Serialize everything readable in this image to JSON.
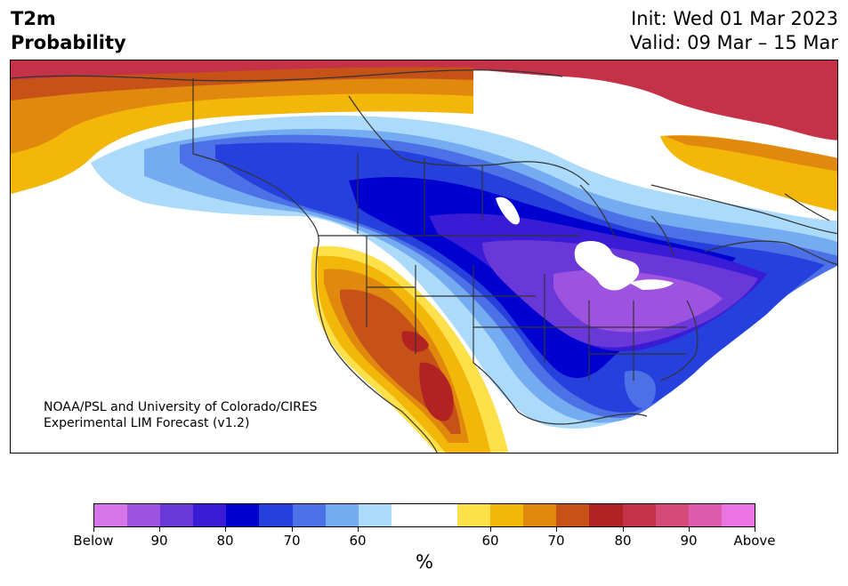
{
  "header": {
    "title_line1": "T2m",
    "title_line2": "Probability",
    "init": "Init: Wed 01 Mar 2023",
    "valid": "Valid: 09 Mar – 15 Mar"
  },
  "credit": {
    "line1": "NOAA/PSL and University of Colorado/CIRES",
    "line2": "Experimental LIM Forecast (v1.2)"
  },
  "colorbar": {
    "colors": [
      "#d675ea",
      "#9e52e0",
      "#6a38d8",
      "#3a1cd6",
      "#0000d0",
      "#2540dc",
      "#4c70e6",
      "#75abf0",
      "#acdafa",
      "#ffffff",
      "#ffffff",
      "#fde04a",
      "#f2b708",
      "#e1880e",
      "#c65218",
      "#b22222",
      "#c53248",
      "#d44b7a",
      "#dd5aad",
      "#e974e2"
    ],
    "ticks": {
      "below": "Below",
      "b90": "90",
      "b80": "80",
      "b70": "70",
      "b60": "60",
      "a60": "60",
      "a70": "70",
      "a80": "80",
      "a90": "90",
      "above": "Above"
    },
    "unit": "%"
  }
}
